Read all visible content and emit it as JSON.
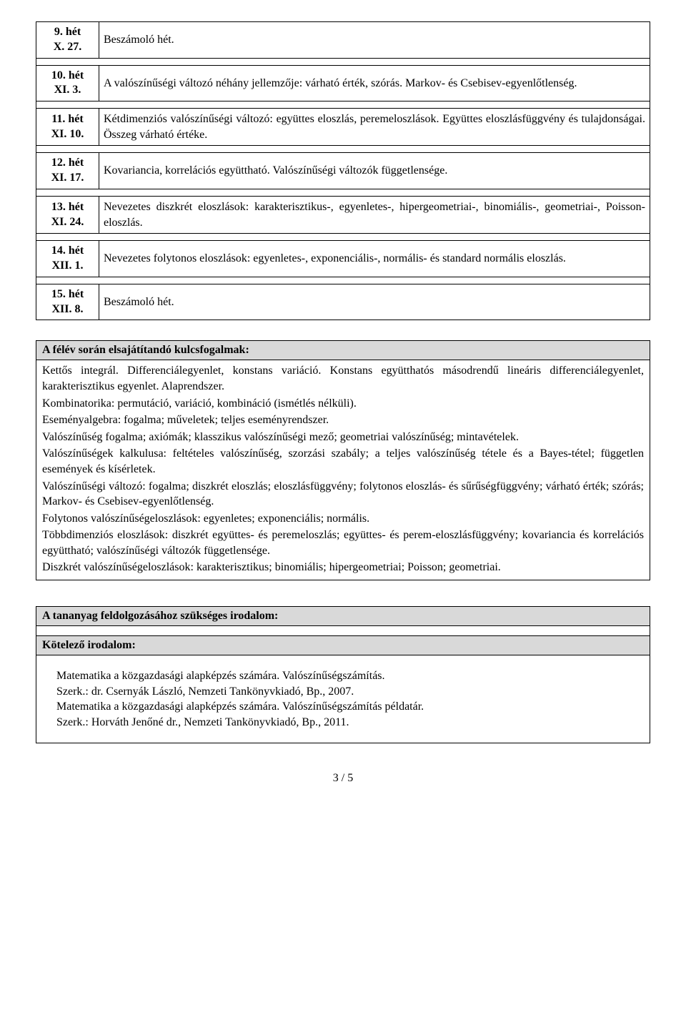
{
  "schedule": [
    {
      "week_line1": "9. hét",
      "week_line2": "X. 27.",
      "topic": "Beszámoló hét."
    },
    {
      "week_line1": "10. hét",
      "week_line2": "XI. 3.",
      "topic": "A valószínűségi változó néhány jellemzője: várható érték, szórás. Markov- és Csebisev-egyenlőtlenség."
    },
    {
      "week_line1": "11. hét",
      "week_line2": "XI. 10.",
      "topic": "Kétdimenziós valószínűségi változó: együttes eloszlás, peremeloszlások. Együttes eloszlásfüggvény és tulajdonságai. Összeg várható értéke."
    },
    {
      "week_line1": "12. hét",
      "week_line2": "XI. 17.",
      "topic": "Kovariancia, korrelációs együttható. Valószínűségi változók függetlensége."
    },
    {
      "week_line1": "13. hét",
      "week_line2": "XI. 24.",
      "topic": "Nevezetes diszkrét eloszlások: karakterisztikus-, egyenletes-, hipergeometriai-, binomiális-, geometriai-, Poisson-eloszlás."
    },
    {
      "week_line1": "14. hét",
      "week_line2": "XII. 1.",
      "topic": "Nevezetes folytonos eloszlások: egyenletes-, exponenciális-, normális- és standard normális eloszlás."
    },
    {
      "week_line1": "15. hét",
      "week_line2": "XII. 8.",
      "topic": "Beszámoló hét."
    }
  ],
  "key_concepts": {
    "header": "A félév során elsajátítandó kulcsfogalmak:",
    "paragraphs": [
      "Kettős integrál. Differenciálegyenlet, konstans variáció. Konstans együtthatós másodrendű lineáris differenciálegyenlet, karakterisztikus egyenlet. Alaprendszer.",
      "Kombinatorika: permutáció, variáció, kombináció (ismétlés nélküli).",
      "Eseményalgebra: fogalma; műveletek; teljes eseményrendszer.",
      "Valószínűség fogalma; axiómák; klasszikus valószínűségi mező; geometriai valószínűség; mintavételek.",
      "Valószínűségek kalkulusa: feltételes valószínűség, szorzási szabály; a teljes valószínűség tétele és a Bayes-tétel; független események és kísérletek.",
      "Valószínűségi változó: fogalma; diszkrét eloszlás; eloszlásfüggvény; folytonos eloszlás- és sűrűségfüggvény; várható érték; szórás; Markov- és Csebisev-egyenlőtlenség.",
      "Folytonos valószínűségeloszlások: egyenletes; exponenciális; normális.",
      "Többdimenziós eloszlások: diszkrét együttes- és peremeloszlás; együttes- és perem-eloszlásfüggvény; kovariancia és korrelációs együttható; valószínűségi változók függetlensége.",
      "Diszkrét valószínűségeloszlások: karakterisztikus; binomiális; hipergeometriai; Poisson; geometriai."
    ]
  },
  "literature": {
    "header_main": "A tananyag feldolgozásához szükséges irodalom:",
    "header_required": "Kötelező irodalom:",
    "lines": [
      "Matematika a közgazdasági alapképzés számára. Valószínűségszámítás.",
      "Szerk.: dr. Csernyák László, Nemzeti Tankönyvkiadó, Bp., 2007.",
      "Matematika a közgazdasági alapképzés számára. Valószínűségszámítás példatár.",
      "Szerk.: Horváth Jenőné dr., Nemzeti Tankönyvkiadó, Bp., 2011."
    ]
  },
  "page_number": "3 / 5",
  "colors": {
    "header_bg": "#d9d9d9",
    "border": "#000000",
    "text": "#000000",
    "page_bg": "#ffffff"
  },
  "typography": {
    "font_family": "Times New Roman",
    "base_fontsize_pt": 12
  }
}
